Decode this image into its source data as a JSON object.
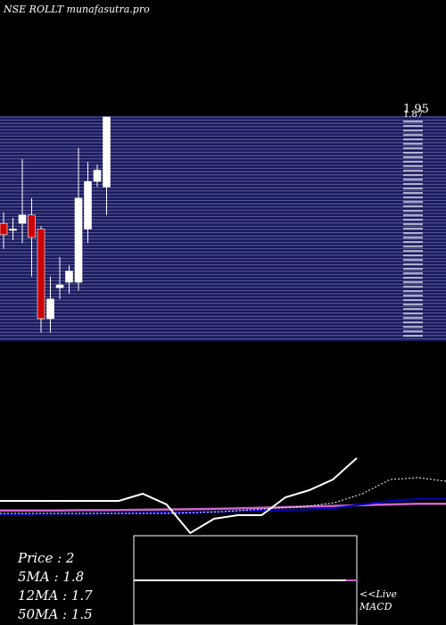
{
  "chart_data": {
    "type": "candlestick",
    "title": "NSE ROLLT munafasutra.pro",
    "price_label": "1.95",
    "price_label_overlap": "1.87",
    "candles": [
      {
        "open": 1.57,
        "high": 1.61,
        "low": 1.48,
        "close": 1.53,
        "color": "red"
      },
      {
        "open": 1.55,
        "high": 1.59,
        "low": 1.51,
        "close": 1.55,
        "color": "white"
      },
      {
        "open": 1.57,
        "high": 1.8,
        "low": 1.5,
        "close": 1.6,
        "color": "white"
      },
      {
        "open": 1.6,
        "high": 1.66,
        "low": 1.38,
        "close": 1.52,
        "color": "red"
      },
      {
        "open": 1.55,
        "high": 1.56,
        "low": 1.18,
        "close": 1.23,
        "color": "red"
      },
      {
        "open": 1.23,
        "high": 1.38,
        "low": 1.18,
        "close": 1.3,
        "color": "white"
      },
      {
        "open": 1.34,
        "high": 1.45,
        "low": 1.3,
        "close": 1.35,
        "color": "white"
      },
      {
        "open": 1.36,
        "high": 1.42,
        "low": 1.32,
        "close": 1.4,
        "color": "white"
      },
      {
        "open": 1.36,
        "high": 1.84,
        "low": 1.33,
        "close": 1.66,
        "color": "white"
      },
      {
        "open": 1.55,
        "high": 1.79,
        "low": 1.5,
        "close": 1.72,
        "color": "white"
      },
      {
        "open": 1.72,
        "high": 1.78,
        "low": 1.7,
        "close": 1.76,
        "color": "white"
      },
      {
        "open": 1.7,
        "high": 1.95,
        "low": 1.6,
        "close": 1.95,
        "color": "white"
      }
    ],
    "price_axis": {
      "min": 1.15,
      "max": 1.95
    },
    "ma_lines": {
      "price": [
        1.56,
        1.56,
        1.56,
        1.56,
        1.56,
        1.56,
        1.58,
        1.55,
        1.47,
        1.51,
        1.52,
        1.52,
        1.57,
        1.59,
        1.62,
        1.68
      ],
      "ma5": [
        1.525,
        1.525,
        1.525,
        1.525,
        1.525,
        1.525,
        1.525,
        1.527,
        1.53,
        1.535,
        1.54,
        1.545,
        1.555,
        1.58,
        1.62,
        1.625,
        1.615
      ],
      "ma12": [
        1.523,
        1.523,
        1.524,
        1.524,
        1.525,
        1.526,
        1.527,
        1.528,
        1.53,
        1.532,
        1.534,
        1.536,
        1.54,
        1.55,
        1.56,
        1.565,
        1.565
      ],
      "ma50": [
        1.533,
        1.533,
        1.533,
        1.534,
        1.534,
        1.535,
        1.536,
        1.537,
        1.538,
        1.54,
        1.542,
        1.544,
        1.546,
        1.548,
        1.55,
        1.552,
        1.552
      ]
    },
    "ma_axis": {
      "min": 1.45,
      "max": 1.7
    },
    "macd": {
      "value": 0.0
    }
  },
  "stats": [
    {
      "label": "Price",
      "value": "2",
      "text": "Price   : 2"
    },
    {
      "label": "5MA",
      "value": "1.8",
      "text": "5MA : 1.8"
    },
    {
      "label": "12MA",
      "value": "1.7",
      "text": "12MA : 1.7"
    },
    {
      "label": "50MA",
      "value": "1.5",
      "text": "50MA : 1.5"
    }
  ],
  "macd_label": {
    "line1": "<<Live",
    "line2": "MACD"
  },
  "colors": {
    "background": "#000000",
    "panel": "#1a1a5e",
    "grid": "#6c6ca8",
    "candle_up": "#ffffff",
    "candle_down": "#cc0000",
    "ma_price": "#ffffff",
    "ma5": "#ffffff",
    "ma12": "#0000cc",
    "ma50": "#cc66cc",
    "macd_signal": "#cc66cc"
  }
}
